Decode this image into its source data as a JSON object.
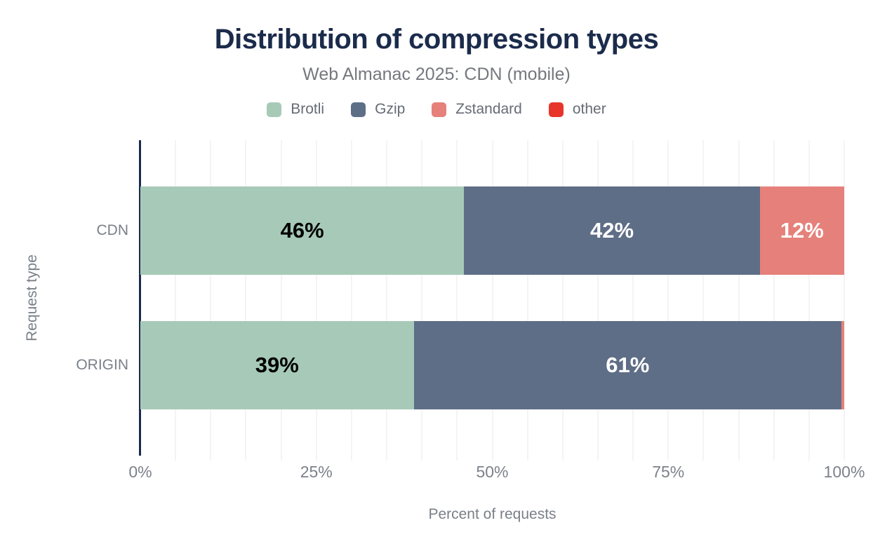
{
  "chart_data": {
    "type": "bar",
    "stacked": true,
    "orientation": "horizontal",
    "title": "Distribution of compression types",
    "subtitle": "Web Almanac 2025: CDN (mobile)",
    "xlabel": "Percent of requests",
    "ylabel": "Request type",
    "categories": [
      "CDN",
      "ORIGIN"
    ],
    "series": [
      {
        "name": "Brotli",
        "color": "#a7cab8",
        "label_color": "#000000",
        "values": [
          46,
          39
        ],
        "labels": [
          "46%",
          "39%"
        ]
      },
      {
        "name": "Gzip",
        "color": "#5f6e87",
        "label_color": "#ffffff",
        "values": [
          42,
          61
        ],
        "labels": [
          "42%",
          "61%"
        ]
      },
      {
        "name": "Zstandard",
        "color": "#e5817a",
        "label_color": "#ffffff",
        "values": [
          12,
          0.4
        ],
        "labels": [
          "12%",
          ""
        ]
      },
      {
        "name": "other",
        "color": "#e7352b",
        "label_color": "#ffffff",
        "values": [
          0,
          0
        ],
        "labels": [
          "",
          ""
        ]
      }
    ],
    "x_ticks": [
      {
        "label": "0%",
        "value": 0
      },
      {
        "label": "25%",
        "value": 25
      },
      {
        "label": "50%",
        "value": 50
      },
      {
        "label": "75%",
        "value": 75
      },
      {
        "label": "100%",
        "value": 100
      }
    ],
    "xlim": [
      0,
      100
    ],
    "grid": true,
    "gridline_step": 5,
    "legend_position": "top",
    "colors": {
      "title_text": "#1b2b4b",
      "axis_line": "#1b2b4b",
      "muted_text": "#7a7f88",
      "gridline": "#f4f4f4",
      "background": "#ffffff"
    }
  }
}
